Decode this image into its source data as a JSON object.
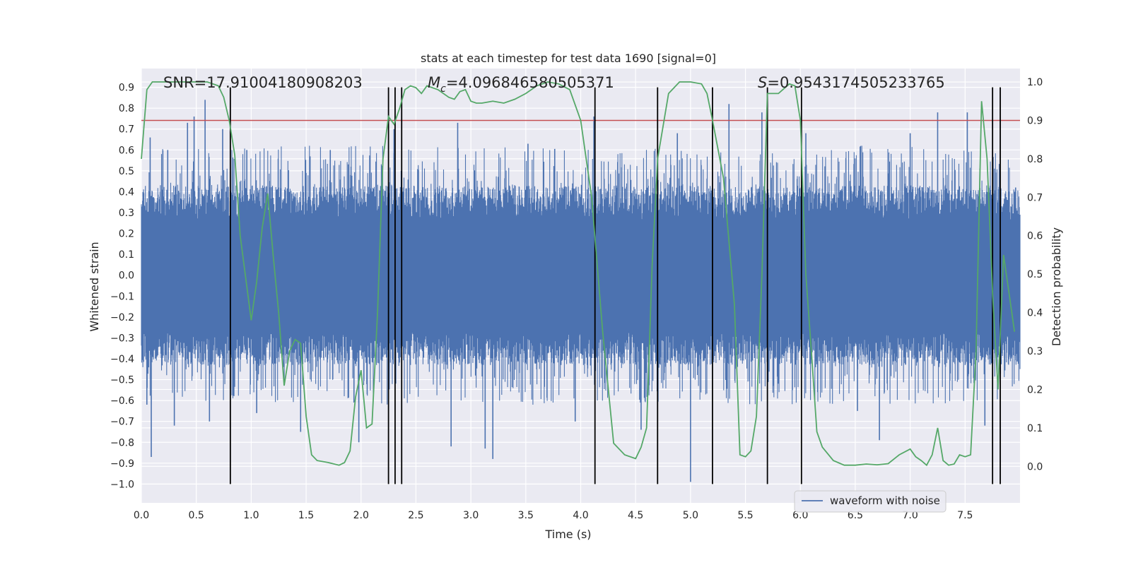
{
  "chart_data": {
    "type": "line",
    "title": "stats at each timestep for test data 1690 [signal=0]",
    "xlabel": "Time (s)",
    "ylabel_left": "Whitened strain",
    "ylabel_right": "Detection probability",
    "xlim": [
      0.0,
      8.0
    ],
    "ylim_left": [
      -1.09,
      0.99
    ],
    "ylim_right": [
      -0.095,
      1.035
    ],
    "grid": true,
    "x_ticks": [
      "0.0",
      "0.5",
      "1.0",
      "1.5",
      "2.0",
      "2.5",
      "3.0",
      "3.5",
      "4.0",
      "4.5",
      "5.0",
      "5.5",
      "6.0",
      "6.5",
      "7.0",
      "7.5"
    ],
    "y_ticks_left": [
      "0.9",
      "0.8",
      "0.7",
      "0.6",
      "0.5",
      "0.4",
      "0.3",
      "0.2",
      "0.1",
      "0.0",
      "−0.1",
      "−0.2",
      "−0.3",
      "−0.4",
      "−0.5",
      "−0.6",
      "−0.7",
      "−0.8",
      "−0.9",
      "−1.0"
    ],
    "y_ticks_right": [
      "1.0",
      "0.9",
      "0.8",
      "0.7",
      "0.6",
      "0.5",
      "0.4",
      "0.3",
      "0.2",
      "0.1",
      "0.0"
    ],
    "annotations": {
      "snr": "SNR=17.91004180908203",
      "mc_symbol": "M",
      "mc_subscript": "c",
      "mc_value": "=4.096846580505371",
      "s_symbol": "S",
      "s_value": "=0.9543174505233765"
    },
    "legend": {
      "label": "waveform with noise",
      "placement": "bottom-right"
    },
    "threshold": {
      "axis": "right",
      "value": 0.9,
      "color": "#c44e52"
    },
    "waveform": {
      "name": "waveform with noise",
      "color": "#4c72b0",
      "x_range": [
        0.0,
        8.0
      ],
      "typical_envelope": [
        -0.43,
        0.43
      ],
      "spikes": [
        {
          "x": 0.05,
          "y": -0.62
        },
        {
          "x": 0.08,
          "y": 0.66
        },
        {
          "x": 0.09,
          "y": -0.87
        },
        {
          "x": 0.24,
          "y": 0.6
        },
        {
          "x": 0.3,
          "y": -0.72
        },
        {
          "x": 0.42,
          "y": 0.73
        },
        {
          "x": 0.48,
          "y": 0.76
        },
        {
          "x": 0.58,
          "y": 0.84
        },
        {
          "x": 0.62,
          "y": -0.7
        },
        {
          "x": 0.74,
          "y": 0.7
        },
        {
          "x": 0.96,
          "y": 0.6
        },
        {
          "x": 1.05,
          "y": -0.66
        },
        {
          "x": 1.45,
          "y": -0.75
        },
        {
          "x": 1.72,
          "y": 0.6
        },
        {
          "x": 1.98,
          "y": -0.8
        },
        {
          "x": 2.3,
          "y": 0.7
        },
        {
          "x": 2.82,
          "y": -0.82
        },
        {
          "x": 2.88,
          "y": 0.73
        },
        {
          "x": 3.13,
          "y": -0.83
        },
        {
          "x": 3.2,
          "y": -0.88
        },
        {
          "x": 3.52,
          "y": 0.63
        },
        {
          "x": 3.95,
          "y": -0.7
        },
        {
          "x": 4.12,
          "y": 0.76
        },
        {
          "x": 4.55,
          "y": -0.74
        },
        {
          "x": 4.88,
          "y": 0.68
        },
        {
          "x": 5.0,
          "y": -0.99
        },
        {
          "x": 5.35,
          "y": 0.82
        },
        {
          "x": 5.65,
          "y": 0.78
        },
        {
          "x": 6.05,
          "y": 0.68
        },
        {
          "x": 6.52,
          "y": -0.65
        },
        {
          "x": 6.72,
          "y": -0.79
        },
        {
          "x": 7.0,
          "y": 0.68
        },
        {
          "x": 7.25,
          "y": 0.78
        },
        {
          "x": 7.52,
          "y": 0.78
        },
        {
          "x": 7.68,
          "y": -0.72
        },
        {
          "x": 7.96,
          "y": 0.42
        }
      ]
    },
    "detection_probability": {
      "name": "detection probability",
      "color": "#55a868",
      "axis": "right",
      "x": [
        0.0,
        0.05,
        0.1,
        0.2,
        0.3,
        0.4,
        0.5,
        0.6,
        0.7,
        0.75,
        0.8,
        0.85,
        0.9,
        0.95,
        1.0,
        1.05,
        1.1,
        1.15,
        1.2,
        1.25,
        1.3,
        1.35,
        1.4,
        1.45,
        1.5,
        1.55,
        1.6,
        1.7,
        1.8,
        1.85,
        1.9,
        1.95,
        2.0,
        2.05,
        2.1,
        2.15,
        2.2,
        2.25,
        2.3,
        2.35,
        2.4,
        2.45,
        2.5,
        2.55,
        2.6,
        2.7,
        2.8,
        2.85,
        2.9,
        2.95,
        3.0,
        3.05,
        3.1,
        3.2,
        3.3,
        3.4,
        3.5,
        3.6,
        3.7,
        3.8,
        3.9,
        4.0,
        4.1,
        4.2,
        4.3,
        4.4,
        4.5,
        4.55,
        4.6,
        4.65,
        4.7,
        4.8,
        4.9,
        5.0,
        5.1,
        5.15,
        5.2,
        5.3,
        5.4,
        5.45,
        5.5,
        5.55,
        5.6,
        5.65,
        5.7,
        5.75,
        5.8,
        5.9,
        5.95,
        6.0,
        6.05,
        6.1,
        6.15,
        6.2,
        6.3,
        6.4,
        6.5,
        6.6,
        6.7,
        6.8,
        6.9,
        7.0,
        7.05,
        7.1,
        7.15,
        7.2,
        7.25,
        7.3,
        7.35,
        7.4,
        7.45,
        7.5,
        7.55,
        7.6,
        7.65,
        7.7,
        7.75,
        7.8,
        7.85,
        7.9,
        7.95
      ],
      "y": [
        0.8,
        0.98,
        1.0,
        1.0,
        1.0,
        1.0,
        1.0,
        1.0,
        0.99,
        0.96,
        0.9,
        0.81,
        0.6,
        0.49,
        0.38,
        0.48,
        0.62,
        0.71,
        0.55,
        0.4,
        0.21,
        0.3,
        0.33,
        0.32,
        0.13,
        0.03,
        0.015,
        0.01,
        0.003,
        0.01,
        0.04,
        0.18,
        0.25,
        0.1,
        0.11,
        0.4,
        0.8,
        0.91,
        0.89,
        0.93,
        0.98,
        0.99,
        0.985,
        0.97,
        0.99,
        0.98,
        0.96,
        0.955,
        0.975,
        0.98,
        0.95,
        0.945,
        0.945,
        0.95,
        0.945,
        0.955,
        0.97,
        0.99,
        1.0,
        0.995,
        0.98,
        0.9,
        0.7,
        0.35,
        0.06,
        0.03,
        0.02,
        0.05,
        0.1,
        0.52,
        0.8,
        0.97,
        1.0,
        1.0,
        0.995,
        0.97,
        0.9,
        0.75,
        0.42,
        0.03,
        0.025,
        0.04,
        0.13,
        0.5,
        0.97,
        0.97,
        0.97,
        0.995,
        0.99,
        0.9,
        0.5,
        0.3,
        0.09,
        0.05,
        0.015,
        0.003,
        0.003,
        0.006,
        0.004,
        0.007,
        0.03,
        0.045,
        0.025,
        0.015,
        0.003,
        0.03,
        0.1,
        0.015,
        0.003,
        0.006,
        0.03,
        0.025,
        0.03,
        0.3,
        0.95,
        0.8,
        0.45,
        0.2,
        0.55,
        0.45,
        0.35
      ]
    },
    "vertical_lines": {
      "color": "#000000",
      "x": [
        0.81,
        2.25,
        2.31,
        2.37,
        4.13,
        4.7,
        5.2,
        5.7,
        6.01,
        7.75,
        7.82
      ]
    }
  }
}
